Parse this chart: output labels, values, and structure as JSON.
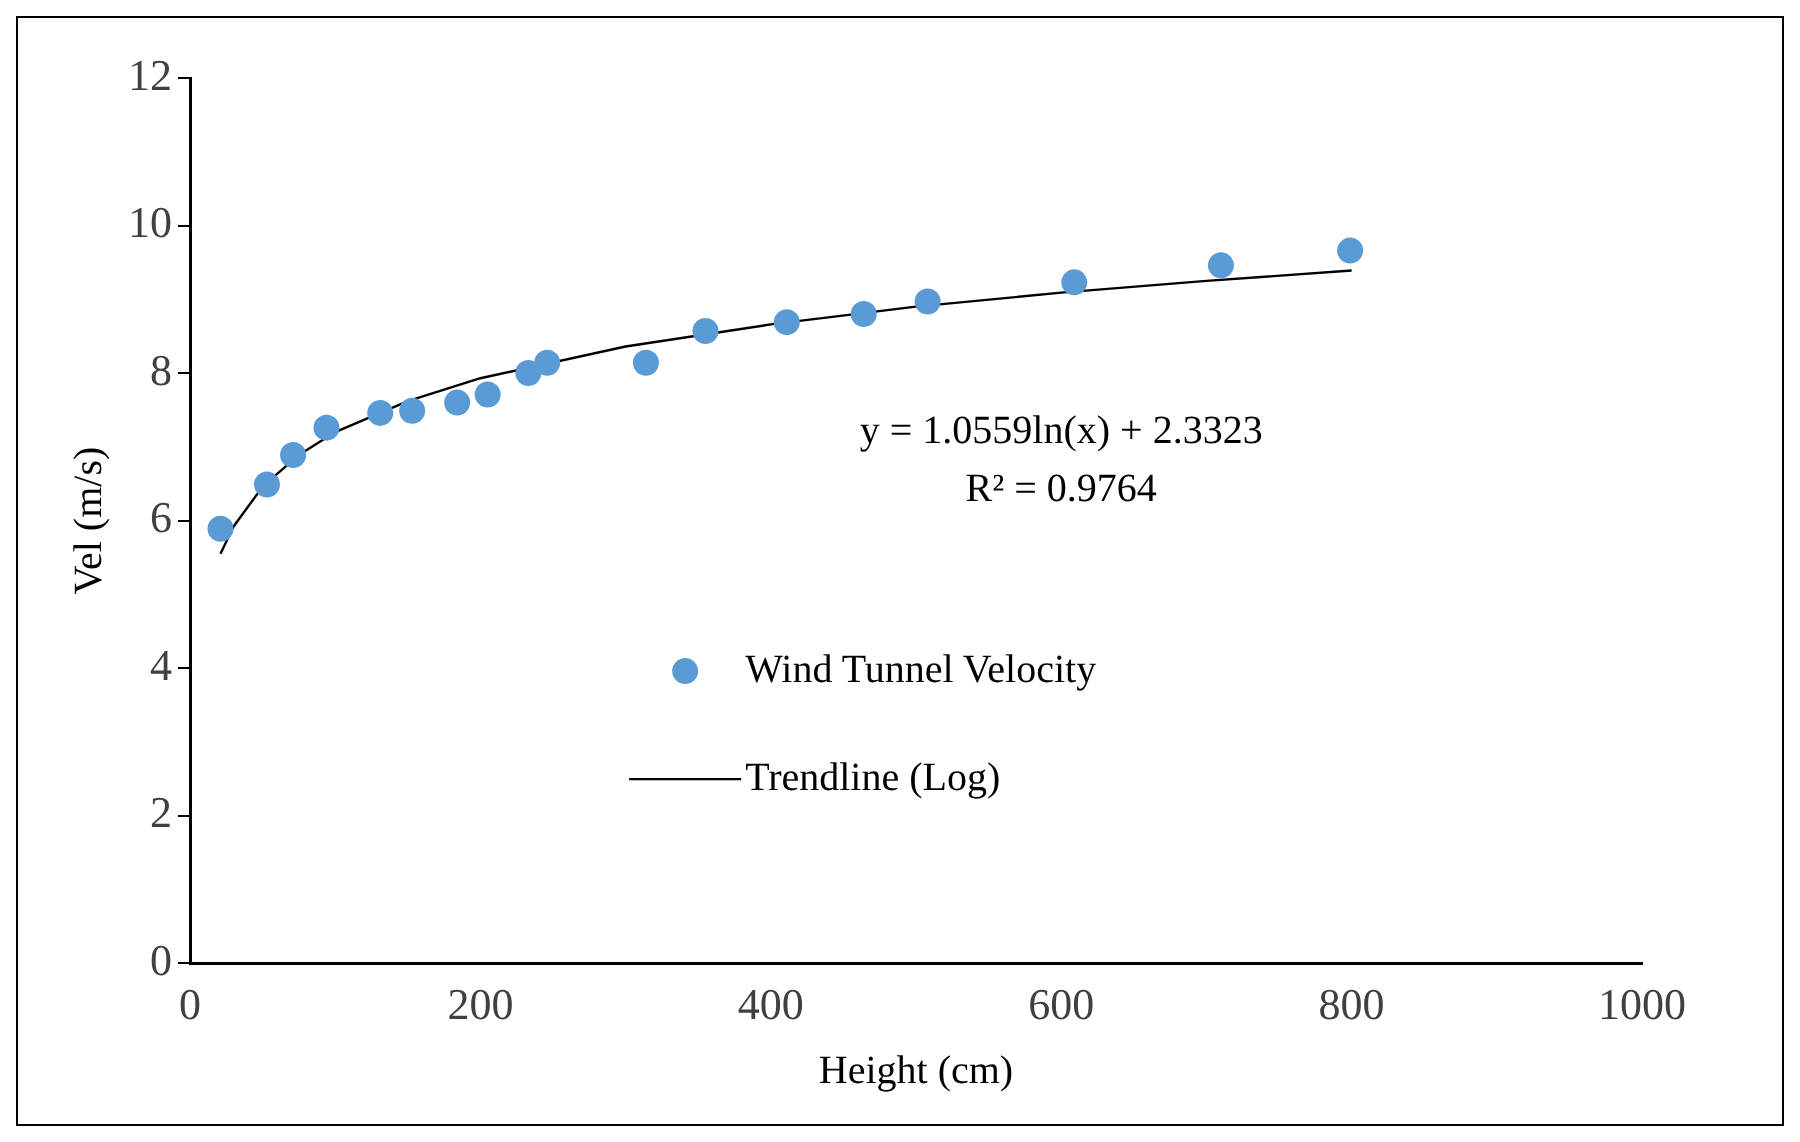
{
  "chart_data": {
    "type": "scatter",
    "xlabel": "Height (cm)",
    "ylabel": "Vel (m/s)",
    "xlim": [
      0,
      1000
    ],
    "xticks": [
      0,
      200,
      400,
      600,
      800,
      1000
    ],
    "ylim": [
      0,
      12
    ],
    "yticks": [
      0,
      2,
      4,
      6,
      8,
      10,
      12
    ],
    "grid": false,
    "legend": "center",
    "annotations": [
      "y = 1.0559ln(x) + 2.3323",
      "R² = 0.9764"
    ],
    "series": [
      {
        "name": "Wind Tunnel Velocity",
        "marker": "circle",
        "color": "#5b9bd5",
        "x": [
          21,
          53,
          71,
          94,
          131,
          153,
          184,
          205,
          233,
          246,
          314,
          355,
          411,
          464,
          508,
          609,
          710,
          799
        ],
        "values": [
          5.89,
          6.49,
          6.89,
          7.26,
          7.46,
          7.49,
          7.6,
          7.71,
          8.0,
          8.14,
          8.14,
          8.57,
          8.69,
          8.8,
          8.97,
          9.23,
          9.46,
          9.66
        ]
      },
      {
        "name": "Trendline (Log)",
        "type": "line",
        "marker": "none",
        "color": "#000000",
        "line_style": "solid",
        "x": [
          21,
          30,
          50,
          75,
          100,
          150,
          200,
          300,
          400,
          500,
          600,
          700,
          800
        ],
        "values": [
          5.55,
          5.92,
          6.46,
          6.89,
          7.2,
          7.62,
          7.93,
          8.36,
          8.66,
          8.9,
          9.09,
          9.25,
          9.39
        ]
      }
    ]
  }
}
